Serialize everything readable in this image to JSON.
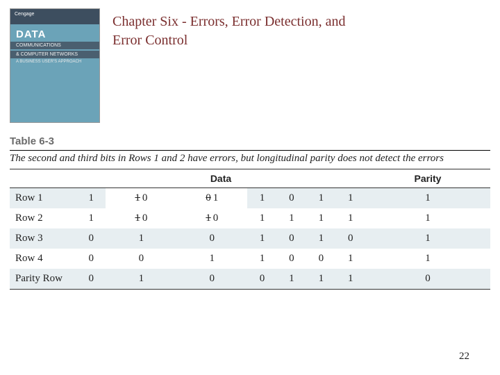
{
  "book": {
    "publisher": "Cengage",
    "title": "DATA",
    "subtitle1": "COMMUNICATIONS",
    "subtitle2": "& COMPUTER NETWORKS",
    "tagline": "A BUSINESS USER'S APPROACH"
  },
  "chapter_title": "Chapter Six - Errors, Error Detection, and Error Control",
  "table": {
    "label": "Table 6-3",
    "caption": "The second and third bits in Rows 1 and 2 have errors, but longitudinal parity does not detect the errors",
    "header": {
      "rowcol": "",
      "data": "Data",
      "parity": "Parity"
    },
    "rows": [
      {
        "label": "Row 1",
        "cells": [
          "1",
          "1 0",
          "0 1",
          "1",
          "0",
          "1",
          "1",
          "1"
        ],
        "shade": true
      },
      {
        "label": "Row 2",
        "cells": [
          "1",
          "1 0",
          "1 0",
          "1",
          "1",
          "1",
          "1",
          "1"
        ],
        "shade": false
      },
      {
        "label": "Row 3",
        "cells": [
          "0",
          "1",
          "0",
          "1",
          "0",
          "1",
          "0",
          "1"
        ],
        "shade": true
      },
      {
        "label": "Row 4",
        "cells": [
          "0",
          "0",
          "1",
          "1",
          "0",
          "0",
          "1",
          "1"
        ],
        "shade": false
      },
      {
        "label": "Parity Row",
        "cells": [
          "0",
          "1",
          "0",
          "0",
          "1",
          "1",
          "1",
          "0"
        ],
        "shade": true
      }
    ]
  },
  "page_number": "22",
  "colors": {
    "title": "#7a2e2e",
    "shade": "#e7eef1",
    "book_bg": "#6ba3b8",
    "book_top": "#3d4e5f"
  }
}
